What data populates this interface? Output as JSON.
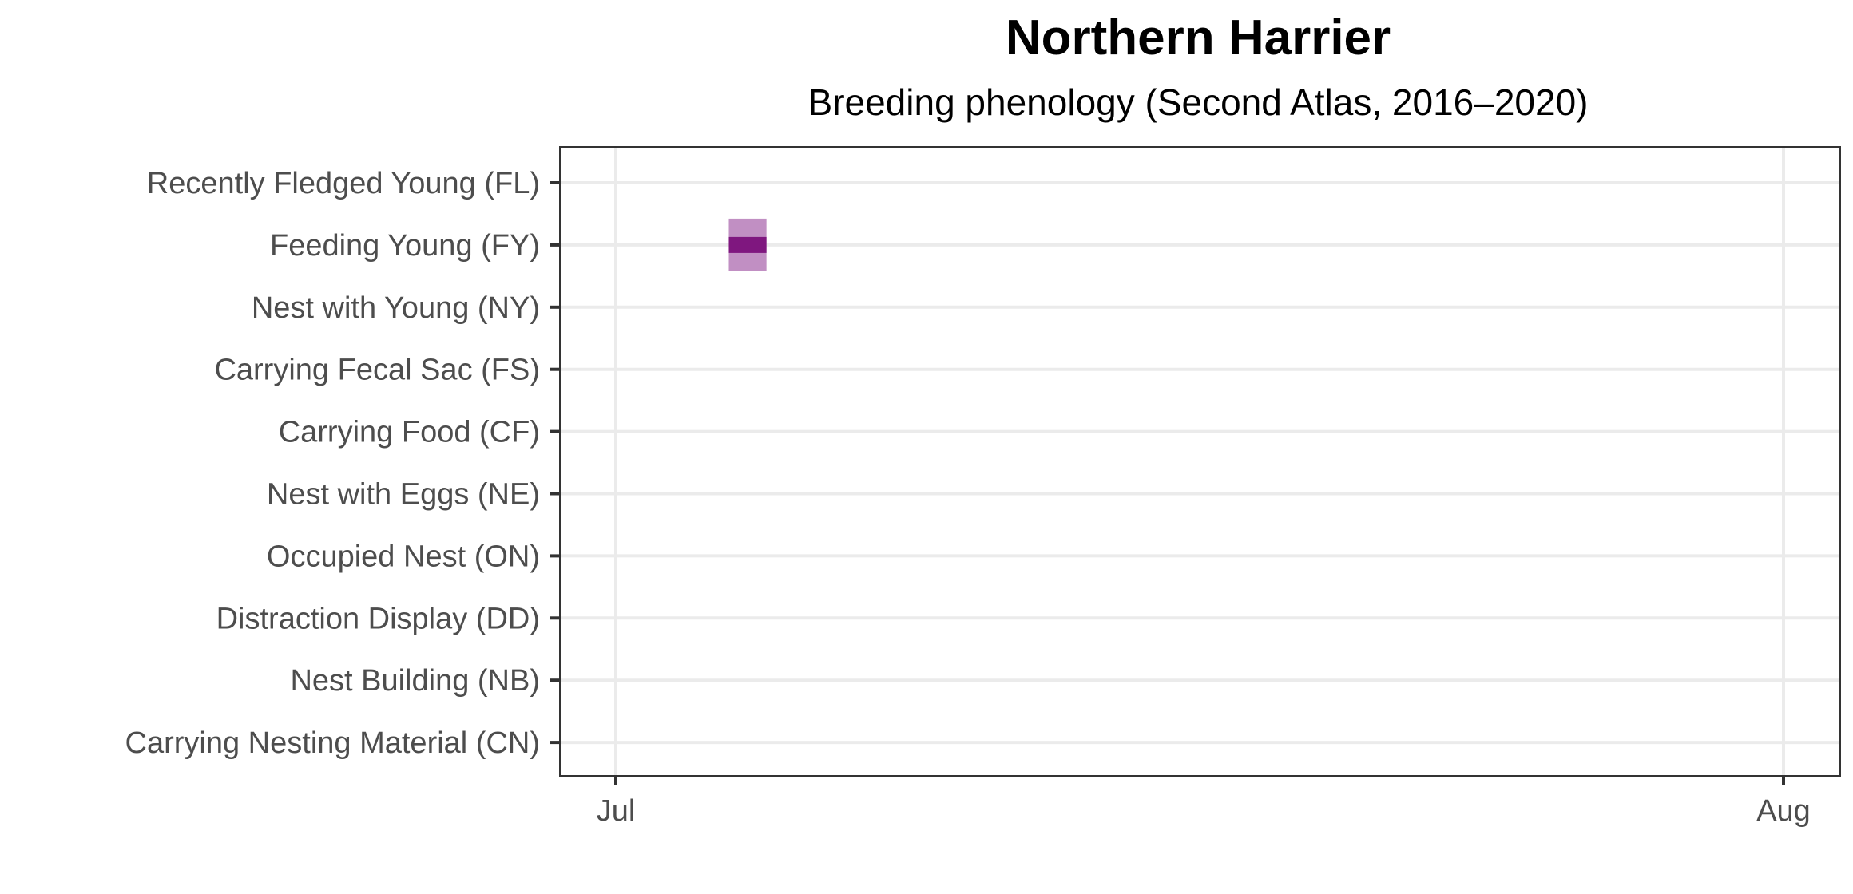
{
  "chart_data": {
    "type": "heatmap",
    "title": "Northern Harrier",
    "subtitle": "Breeding phenology (Second Atlas, 2016–2020)",
    "xlabel": "",
    "ylabel": "",
    "x_ticks": [
      "Jul",
      "Aug"
    ],
    "x_range": [
      "2020-07-01",
      "2020-08-01"
    ],
    "categories": [
      "Recently Fledged Young (FL)",
      "Feeding Young (FY)",
      "Nest with Young (NY)",
      "Carrying Fecal Sac (FS)",
      "Carrying Food (CF)",
      "Nest with Eggs (NE)",
      "Occupied Nest (ON)",
      "Distraction Display (DD)",
      "Nest Building (NB)",
      "Carrying Nesting Material (CN)"
    ],
    "series": [
      {
        "category": "Feeding Young (FY)",
        "observations": [
          {
            "start": "2020-07-04",
            "end": "2020-07-05"
          }
        ]
      }
    ],
    "colors": {
      "observation_range": "#c18fc3",
      "observation_core": "#7f177f",
      "grid": "#ebebeb",
      "panel_border": "#333333"
    },
    "grid": true,
    "legend": "none"
  }
}
